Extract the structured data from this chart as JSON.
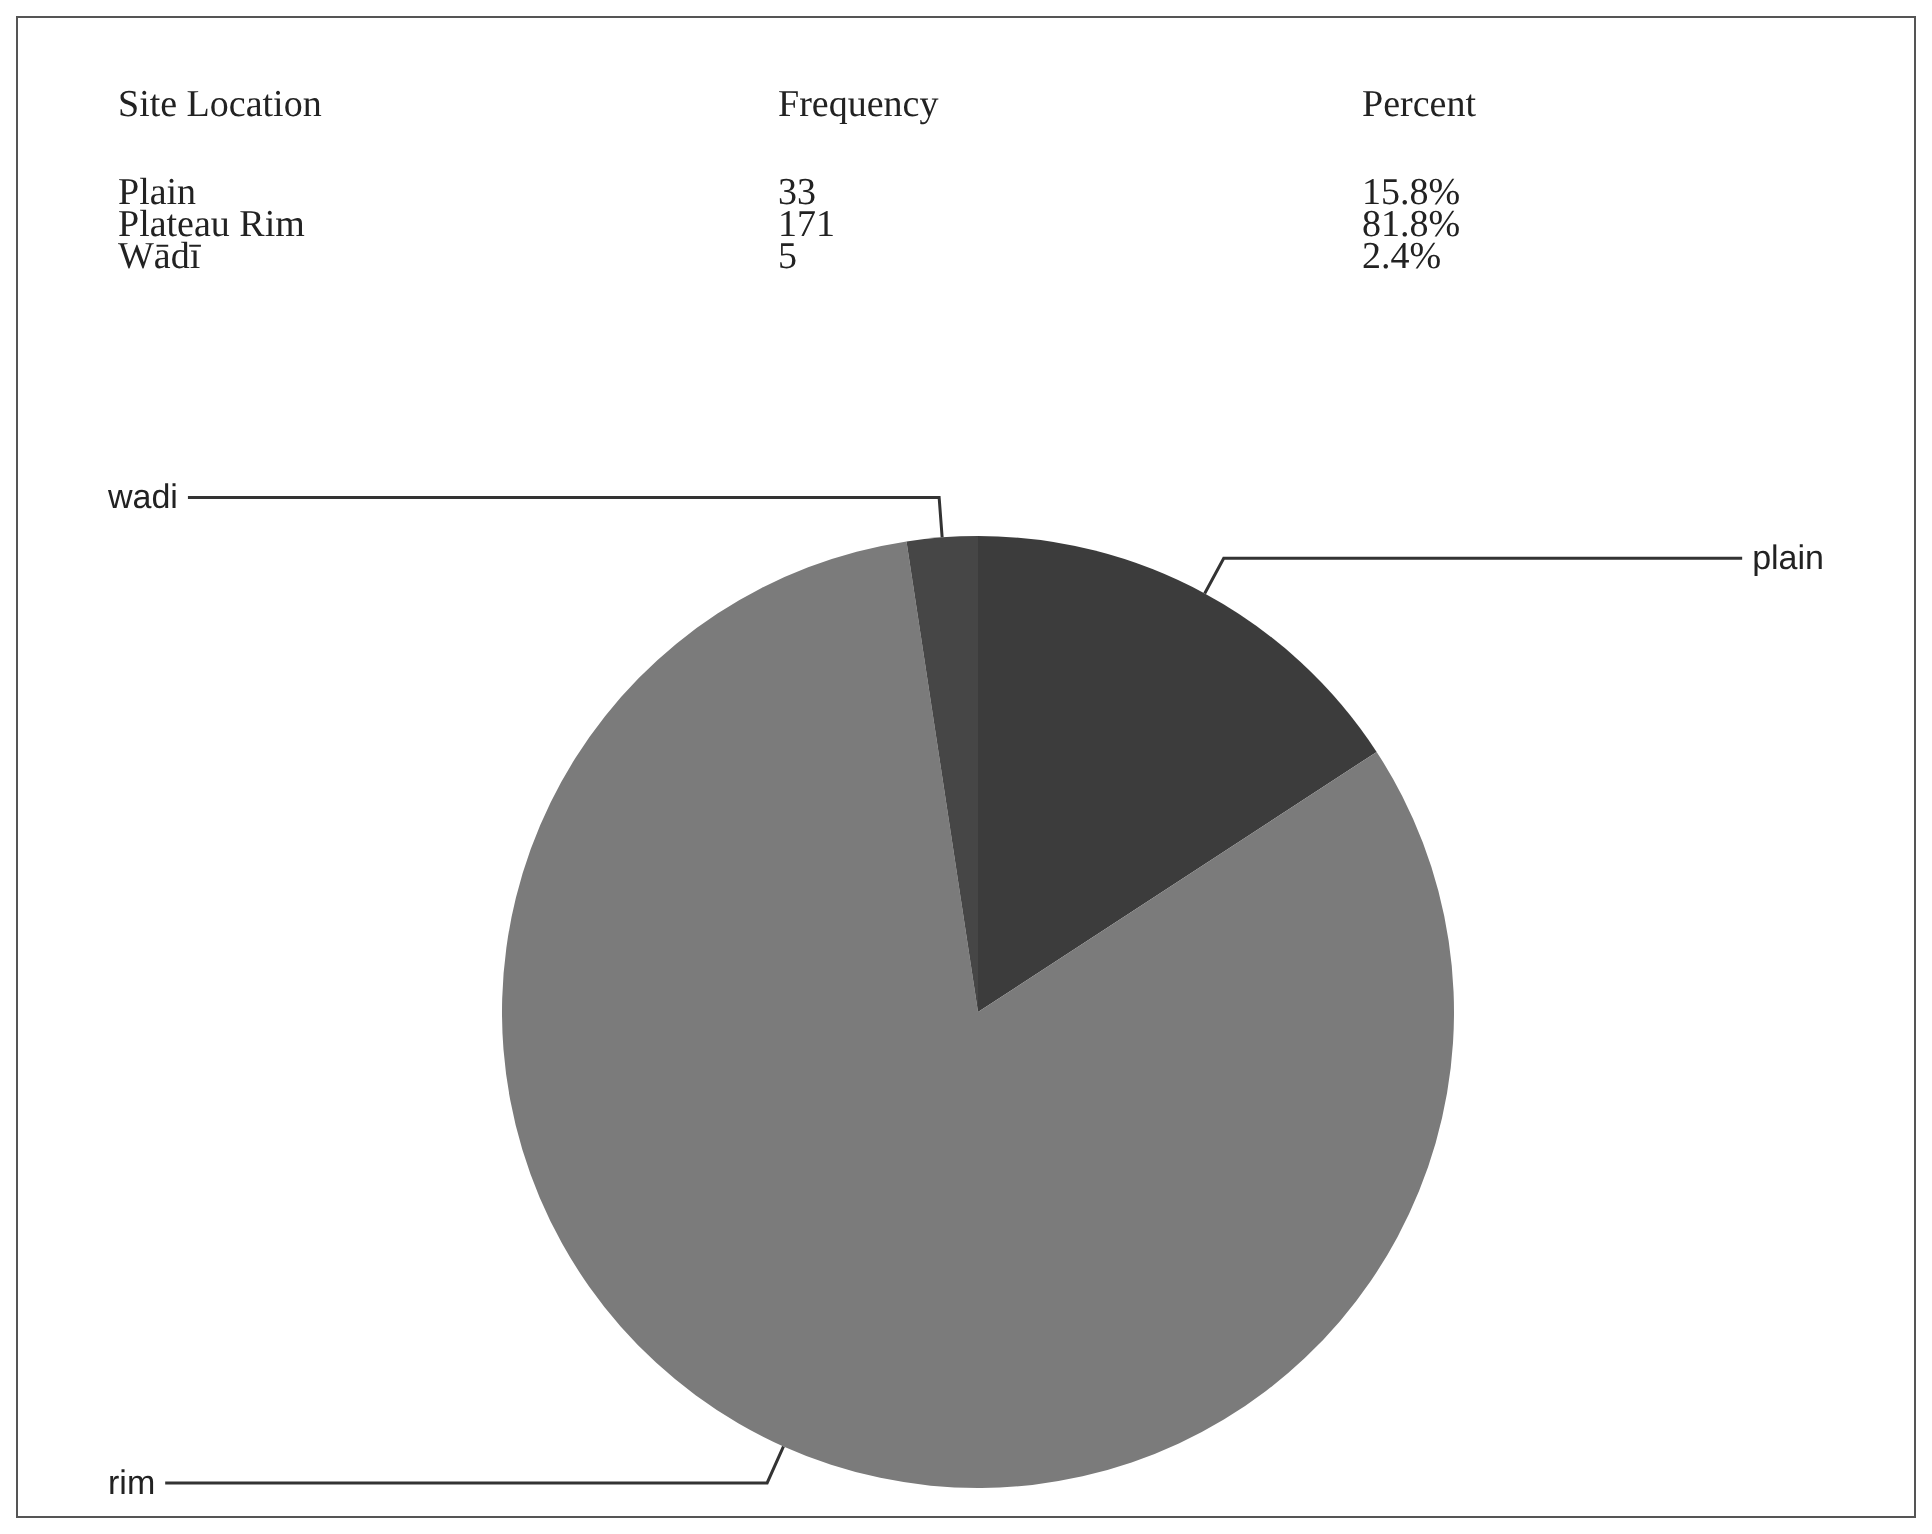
{
  "chart_data": {
    "type": "pie",
    "categories": [
      "plain",
      "rim",
      "wadi"
    ],
    "values": [
      15.8,
      81.8,
      2.4
    ],
    "colors": [
      "#3c3c3c",
      "#7b7b7b",
      "#464646"
    ],
    "annotations": [
      "Site Location",
      "Frequency",
      "Percent",
      "Plain",
      "33",
      "15.8%",
      "Plateau Rim",
      "171",
      "81.8%",
      "Wādī",
      "5",
      "2.4%"
    ]
  }
}
